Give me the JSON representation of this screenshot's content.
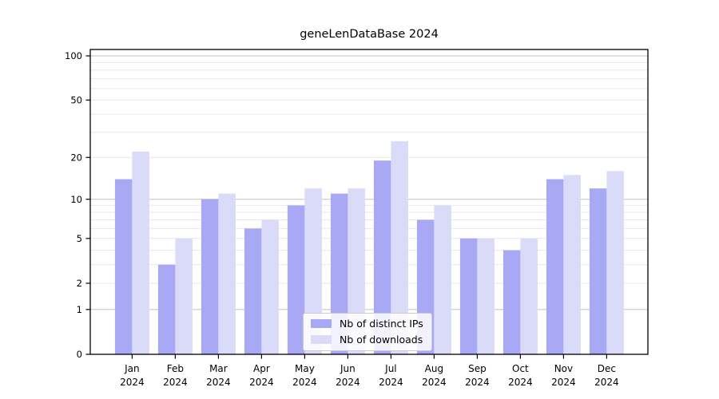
{
  "figure": {
    "title": "geneLenDataBase 2024"
  },
  "chart_data": {
    "type": "bar",
    "title": "geneLenDataBase 2024",
    "categories": [
      "Jan 2024",
      "Feb 2024",
      "Mar 2024",
      "Apr 2024",
      "May 2024",
      "Jun 2024",
      "Jul 2024",
      "Aug 2024",
      "Sep 2024",
      "Oct 2024",
      "Nov 2024",
      "Dec 2024"
    ],
    "series": [
      {
        "name": "Nb of distinct IPs",
        "color": "#a8a8f4",
        "values": [
          14,
          3,
          10,
          6,
          9,
          11,
          19,
          7,
          5,
          4,
          14,
          12
        ]
      },
      {
        "name": "Nb of downloads",
        "color": "#dadaf9",
        "values": [
          22,
          5,
          11,
          7,
          12,
          12,
          26,
          9,
          5,
          5,
          15,
          16
        ]
      }
    ],
    "xlabel": "",
    "ylabel": "",
    "yscale": "log1p",
    "ylim": [
      0,
      110.5
    ],
    "yticks": [
      0,
      1,
      2,
      5,
      10,
      20,
      50,
      100
    ],
    "major_gridlines": [
      1,
      10,
      100
    ],
    "minor_gridlines": [
      2,
      3,
      4,
      5,
      6,
      7,
      8,
      9,
      20,
      30,
      40,
      50,
      60,
      70,
      80,
      90
    ],
    "legend_position": "lower center",
    "grid": "on",
    "colors": {
      "major_grid": "#c9c9c9",
      "minor_grid": "#e8e8e8",
      "axis": "#000000",
      "background": "#ffffff"
    }
  }
}
